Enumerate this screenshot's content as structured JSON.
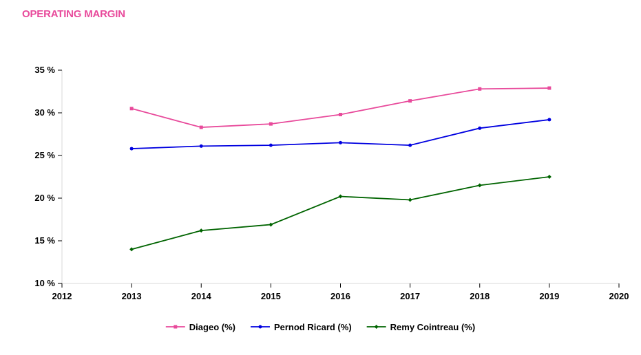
{
  "chart_data": {
    "type": "line",
    "title": "OPERATING MARGIN",
    "xlabel": "",
    "ylabel": "",
    "x": [
      2013,
      2014,
      2015,
      2016,
      2017,
      2018,
      2019
    ],
    "xlim": [
      2012,
      2020
    ],
    "xticks": [
      "2012",
      "2013",
      "2014",
      "2015",
      "2016",
      "2017",
      "2018",
      "2019",
      "2020"
    ],
    "ylim": [
      10,
      35
    ],
    "yticks": [
      "10 %",
      "15 %",
      "20 %",
      "25 %",
      "30 %",
      "35 %"
    ],
    "grid": false,
    "legend_position": "bottom",
    "series": [
      {
        "name": "Diageo (%)",
        "color": "#e84a9b",
        "marker": "square",
        "values": [
          30.5,
          28.3,
          28.7,
          29.8,
          31.4,
          32.8,
          32.9
        ]
      },
      {
        "name": "Pernod Ricard (%)",
        "color": "#0000e0",
        "marker": "circle",
        "values": [
          25.8,
          26.1,
          26.2,
          26.5,
          26.2,
          28.2,
          29.2
        ]
      },
      {
        "name": "Remy Cointreau (%)",
        "color": "#006400",
        "marker": "diamond",
        "values": [
          14.0,
          16.2,
          16.9,
          20.2,
          19.8,
          21.5,
          22.5
        ]
      }
    ]
  },
  "colors": {
    "title": "#e84a9b"
  }
}
